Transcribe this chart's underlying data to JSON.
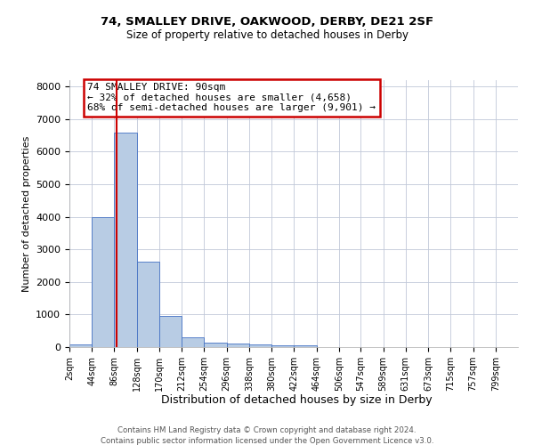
{
  "title1": "74, SMALLEY DRIVE, OAKWOOD, DERBY, DE21 2SF",
  "title2": "Size of property relative to detached houses in Derby",
  "xlabel": "Distribution of detached houses by size in Derby",
  "ylabel": "Number of detached properties",
  "footer1": "Contains HM Land Registry data © Crown copyright and database right 2024.",
  "footer2": "Contains public sector information licensed under the Open Government Licence v3.0.",
  "annotation_title": "74 SMALLEY DRIVE: 90sqm",
  "annotation_line2": "← 32% of detached houses are smaller (4,658)",
  "annotation_line3": "68% of semi-detached houses are larger (9,901) →",
  "property_size_sqm": 90,
  "bar_edges": [
    2,
    44,
    86,
    128,
    170,
    212,
    254,
    296,
    338,
    380,
    422,
    464,
    506,
    547,
    589,
    631,
    673,
    715,
    757,
    799,
    841
  ],
  "bar_heights": [
    75,
    4000,
    6600,
    2620,
    970,
    310,
    140,
    100,
    75,
    55,
    50,
    0,
    0,
    0,
    0,
    0,
    0,
    0,
    0,
    0
  ],
  "bar_color": "#b8cce4",
  "bar_edge_color": "#4472c4",
  "line_color": "#cc0000",
  "annotation_box_color": "#cc0000",
  "background_color": "#ffffff",
  "grid_color": "#c0c8d8",
  "ylim": [
    0,
    8200
  ],
  "yticks": [
    0,
    1000,
    2000,
    3000,
    4000,
    5000,
    6000,
    7000,
    8000
  ]
}
